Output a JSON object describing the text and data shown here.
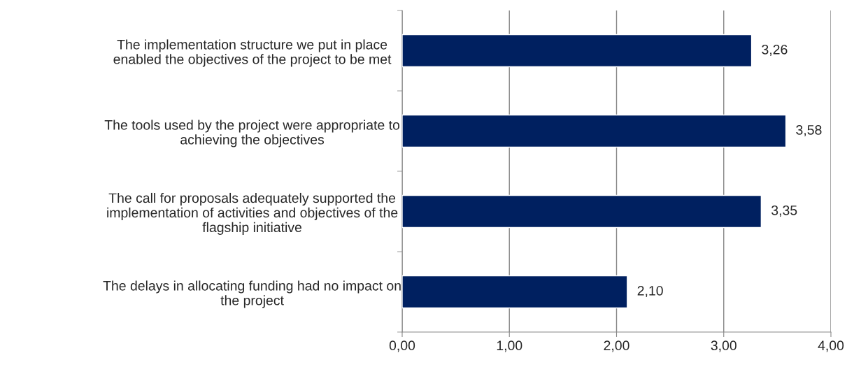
{
  "chart_data": {
    "type": "bar",
    "orientation": "horizontal",
    "categories": [
      "The implementation structure we put in place\nenabled the objectives of the project to be met",
      "The tools used by the project were appropriate to\nachieving the objectives",
      "The call for proposals adequately supported the\nimplementation of activities and objectives of the\nflagship initiative",
      "The delays in allocating funding had no impact on\nthe project"
    ],
    "values": [
      3.26,
      3.58,
      3.35,
      2.1
    ],
    "value_labels": [
      "3,26",
      "3,58",
      "3,35",
      "2,10"
    ],
    "color": "#002060",
    "xlim": [
      0,
      4
    ],
    "xticks": [
      {
        "value": 0,
        "label": "0,00"
      },
      {
        "value": 1,
        "label": "1,00"
      },
      {
        "value": 2,
        "label": "2,00"
      },
      {
        "value": 3,
        "label": "3,00"
      },
      {
        "value": 4,
        "label": "4,00"
      }
    ],
    "grid": "x"
  }
}
